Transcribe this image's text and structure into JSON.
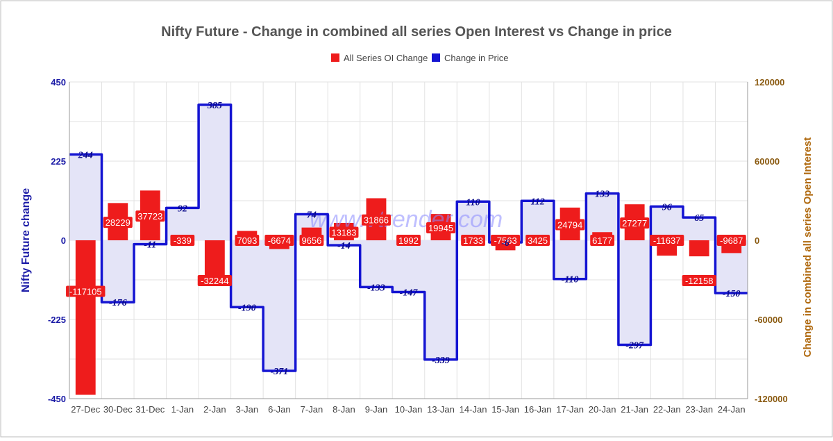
{
  "chart_data": {
    "type": "bar",
    "title": "Nifty Future - Change in combined all series Open Interest vs Change in price",
    "categories": [
      "27-Dec",
      "30-Dec",
      "31-Dec",
      "1-Jan",
      "2-Jan",
      "3-Jan",
      "6-Jan",
      "7-Jan",
      "8-Jan",
      "9-Jan",
      "10-Jan",
      "13-Jan",
      "14-Jan",
      "15-Jan",
      "16-Jan",
      "17-Jan",
      "20-Jan",
      "21-Jan",
      "22-Jan",
      "23-Jan",
      "24-Jan"
    ],
    "series": [
      {
        "name": "All Series OI Change",
        "axis": "right",
        "mark": "bar",
        "color": "#ee1c1c",
        "values": [
          -117105,
          28229,
          37723,
          -339,
          -32244,
          7093,
          -6674,
          9656,
          13183,
          31866,
          1992,
          19945,
          1733,
          -7563,
          3425,
          24794,
          6177,
          27277,
          -11637,
          -12158,
          -9687
        ],
        "labels": [
          "-117105",
          "28229",
          "37723",
          "-339",
          "-32244",
          "7093",
          "-6674",
          "9656",
          "13183",
          "31866",
          "1992",
          "19945",
          "1733",
          "-7563",
          "3425",
          "24794",
          "6177",
          "27277",
          "-11637",
          "-12158",
          "-9687"
        ]
      },
      {
        "name": "Change in Price",
        "axis": "left",
        "mark": "step-area",
        "color": "#1414d2",
        "values": [
          244,
          -176,
          -11,
          92,
          385,
          -190,
          -371,
          74,
          -14,
          -133,
          -147,
          -339,
          110,
          -6,
          112,
          -110,
          133,
          -297,
          96,
          65,
          -150
        ],
        "labels": [
          "244",
          "-176",
          "-11",
          "92",
          "385",
          "-190",
          "-371",
          "74",
          "-14",
          "-133",
          "-147",
          "-339",
          "110",
          "-6",
          "112",
          "-110",
          "133",
          "-297",
          "96",
          "65",
          "-150"
        ]
      }
    ],
    "ylabel": "Nifty Future change",
    "y2label": "Change in combined all series Open Interest",
    "ylim": [
      -450,
      450
    ],
    "y2lim": [
      -120000,
      120000
    ],
    "yticks": [
      "450",
      "225",
      "0",
      "-225",
      "-450"
    ],
    "y2ticks": [
      "120000",
      "60000",
      "0",
      "-60000",
      "-120000"
    ],
    "legend_position": "top-center",
    "grid": true,
    "watermark": "www.vtrender.com"
  },
  "colors": {
    "oi": "#ee1c1c",
    "price": "#1414d2",
    "price_fill": "#e4e4f7",
    "left_axis": "#1a1aa6",
    "right_axis": "#8a5a10"
  }
}
